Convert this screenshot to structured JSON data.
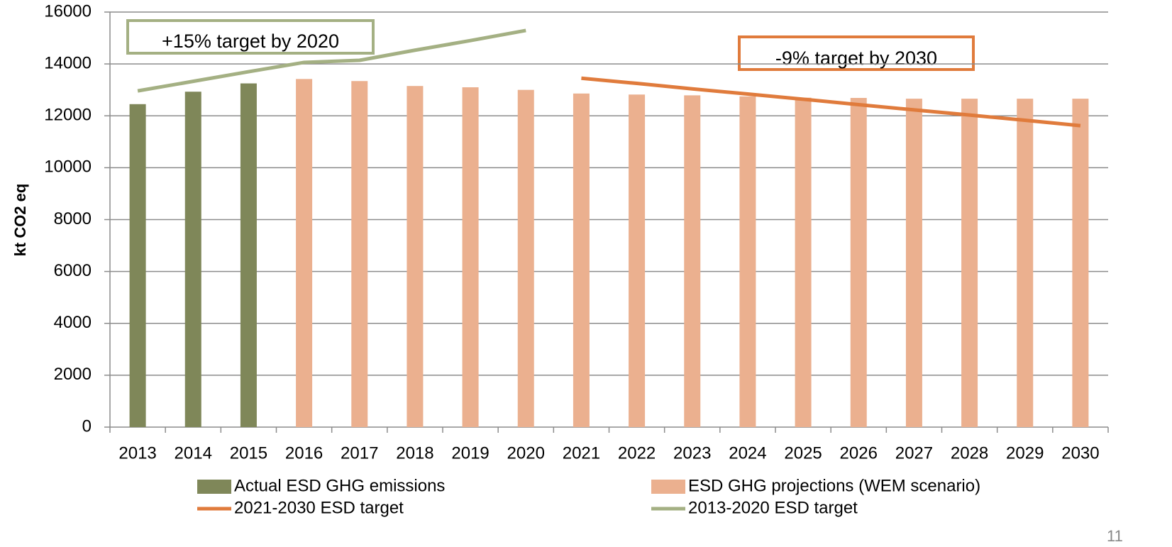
{
  "chart_data": {
    "type": "bar",
    "y_label": "kt CO2 eq",
    "categories": [
      "2013",
      "2014",
      "2015",
      "2016",
      "2017",
      "2018",
      "2019",
      "2020",
      "2021",
      "2022",
      "2023",
      "2024",
      "2025",
      "2026",
      "2027",
      "2028",
      "2029",
      "2030"
    ],
    "series": [
      {
        "name": "Actual ESD GHG emissions",
        "type": "bar",
        "color": "#7f8759",
        "values": [
          12450,
          12930,
          13250,
          null,
          null,
          null,
          null,
          null,
          null,
          null,
          null,
          null,
          null,
          null,
          null,
          null,
          null,
          null
        ]
      },
      {
        "name": "ESD GHG projections (WEM scenario)",
        "type": "bar",
        "color": "#ebb08f",
        "values": [
          null,
          null,
          null,
          13420,
          13340,
          13150,
          13100,
          13000,
          12860,
          12820,
          12790,
          12750,
          12700,
          12690,
          12660,
          12660,
          12660,
          12660
        ]
      },
      {
        "name": "2021-2030 ESD target",
        "type": "line",
        "color": "#e07b3c",
        "values": [
          null,
          null,
          null,
          null,
          null,
          null,
          null,
          null,
          13450,
          13250,
          13040,
          12840,
          12640,
          12430,
          12230,
          12030,
          11830,
          11620
        ]
      },
      {
        "name": "2013-2020 ESD target",
        "type": "line",
        "color": "#a4b083",
        "values": [
          12960,
          13330,
          13700,
          14060,
          14140,
          14530,
          14900,
          15290,
          null,
          null,
          null,
          null,
          null,
          null,
          null,
          null,
          null,
          null
        ]
      }
    ],
    "ylim": [
      0,
      16000
    ],
    "yticks": [
      0,
      2000,
      4000,
      6000,
      8000,
      10000,
      12000,
      14000,
      16000
    ],
    "grid": true,
    "annotations": [
      "+15% target by  2020",
      "-9% target by 2030"
    ],
    "page_number": "11"
  }
}
